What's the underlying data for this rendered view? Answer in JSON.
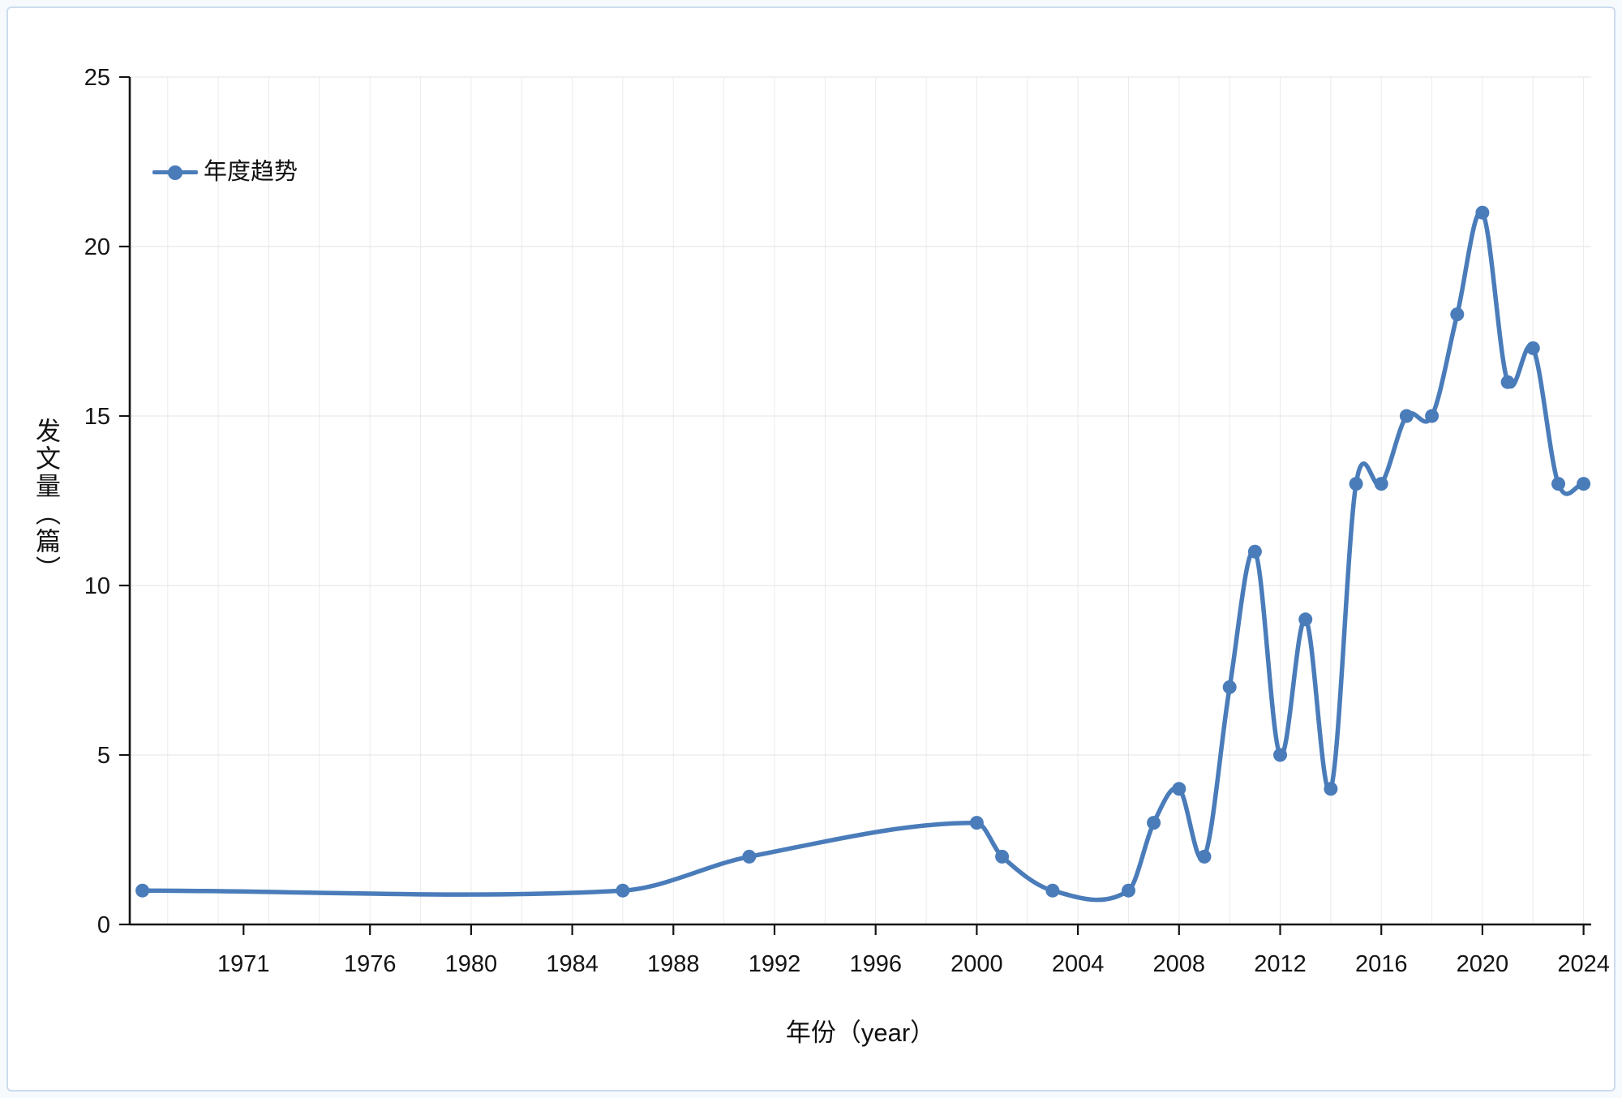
{
  "page": {
    "background": "#f6fafd",
    "frame_border_color": "#ccdcee"
  },
  "chart_data": {
    "type": "line",
    "title": "",
    "xlabel": "年份（year）",
    "ylabel": "发文量（篇）",
    "xlim": [
      1966.5,
      2024.3
    ],
    "ylim": [
      0,
      25
    ],
    "x_tick_labels": [
      1971,
      1976,
      1980,
      1984,
      1988,
      1992,
      1996,
      2000,
      2004,
      2008,
      2012,
      2016,
      2020,
      2024
    ],
    "y_tick_labels": [
      0,
      5,
      10,
      15,
      20,
      25
    ],
    "grid": true,
    "minor_x_grid_step_years": 2,
    "legend_position": "top-left",
    "series": [
      {
        "name": "年度趋势",
        "color": "#4a7cba",
        "smooth": true,
        "marker": "circle",
        "points": [
          [
            1967,
            1
          ],
          [
            1986,
            1
          ],
          [
            1991,
            2
          ],
          [
            2000,
            3
          ],
          [
            2001,
            2
          ],
          [
            2003,
            1
          ],
          [
            2006,
            1
          ],
          [
            2007,
            3
          ],
          [
            2008,
            4
          ],
          [
            2009,
            2
          ],
          [
            2010,
            7
          ],
          [
            2011,
            11
          ],
          [
            2012,
            5
          ],
          [
            2013,
            9
          ],
          [
            2014,
            4
          ],
          [
            2015,
            13
          ],
          [
            2016,
            13
          ],
          [
            2017,
            15
          ],
          [
            2018,
            15
          ],
          [
            2019,
            18
          ],
          [
            2020,
            21
          ],
          [
            2021,
            16
          ],
          [
            2022,
            17
          ],
          [
            2023,
            13
          ],
          [
            2024,
            13
          ]
        ]
      }
    ],
    "colors": {
      "grid": "#ebebeb",
      "axis": "#141414",
      "tick_text": "#141414"
    }
  }
}
